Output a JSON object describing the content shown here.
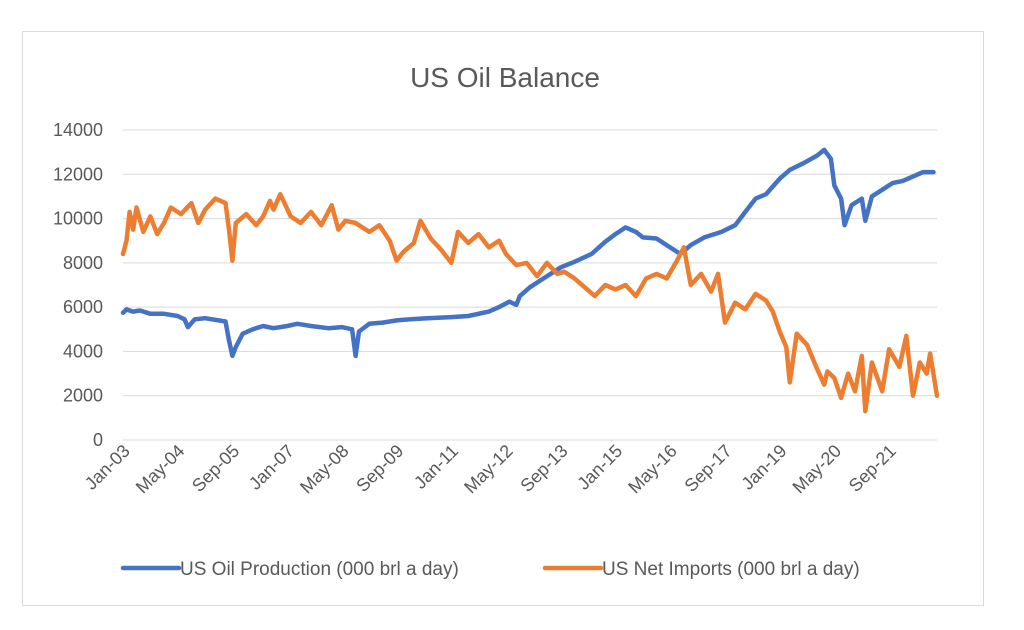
{
  "chart_data": {
    "type": "line",
    "title": "US Oil Balance",
    "xlabel": "",
    "ylabel": "",
    "ylim": [
      0,
      14000
    ],
    "y_ticks": [
      0,
      2000,
      4000,
      6000,
      8000,
      10000,
      12000,
      14000
    ],
    "x_tick_labels": [
      "Jan-03",
      "May-04",
      "Sep-05",
      "Jan-07",
      "May-08",
      "Sep-09",
      "Jan-11",
      "May-12",
      "Sep-13",
      "Jan-15",
      "May-16",
      "Sep-17",
      "Jan-19",
      "May-20",
      "Sep-21"
    ],
    "grid": "horizontal",
    "legend_position": "bottom",
    "series": [
      {
        "name": "US Oil Production (000 brl a day)",
        "color": "#4472C4",
        "points": [
          [
            "2003-01",
            5750
          ],
          [
            "2003-02",
            5900
          ],
          [
            "2003-04",
            5800
          ],
          [
            "2003-06",
            5850
          ],
          [
            "2003-09",
            5700
          ],
          [
            "2004-01",
            5700
          ],
          [
            "2004-05",
            5600
          ],
          [
            "2004-07",
            5450
          ],
          [
            "2004-08",
            5100
          ],
          [
            "2004-10",
            5450
          ],
          [
            "2005-01",
            5500
          ],
          [
            "2005-05",
            5400
          ],
          [
            "2005-07",
            5350
          ],
          [
            "2005-08",
            4500
          ],
          [
            "2005-09",
            3800
          ],
          [
            "2005-10",
            4200
          ],
          [
            "2005-12",
            4800
          ],
          [
            "2006-03",
            5000
          ],
          [
            "2006-06",
            5150
          ],
          [
            "2006-09",
            5050
          ],
          [
            "2007-01",
            5150
          ],
          [
            "2007-04",
            5250
          ],
          [
            "2007-08",
            5150
          ],
          [
            "2008-01",
            5050
          ],
          [
            "2008-05",
            5100
          ],
          [
            "2008-08",
            5000
          ],
          [
            "2008-09",
            3800
          ],
          [
            "2008-10",
            4900
          ],
          [
            "2009-01",
            5250
          ],
          [
            "2009-05",
            5300
          ],
          [
            "2009-09",
            5400
          ],
          [
            "2010-01",
            5450
          ],
          [
            "2010-06",
            5500
          ],
          [
            "2011-01",
            5550
          ],
          [
            "2011-06",
            5600
          ],
          [
            "2011-12",
            5800
          ],
          [
            "2012-03",
            6000
          ],
          [
            "2012-06",
            6250
          ],
          [
            "2012-08",
            6100
          ],
          [
            "2012-09",
            6500
          ],
          [
            "2012-12",
            6900
          ],
          [
            "2013-04",
            7300
          ],
          [
            "2013-09",
            7800
          ],
          [
            "2014-01",
            8050
          ],
          [
            "2014-06",
            8400
          ],
          [
            "2014-10",
            8950
          ],
          [
            "2015-01",
            9300
          ],
          [
            "2015-04",
            9600
          ],
          [
            "2015-07",
            9400
          ],
          [
            "2015-09",
            9150
          ],
          [
            "2016-01",
            9100
          ],
          [
            "2016-05",
            8700
          ],
          [
            "2016-08",
            8400
          ],
          [
            "2016-11",
            8800
          ],
          [
            "2017-03",
            9150
          ],
          [
            "2017-08",
            9400
          ],
          [
            "2017-12",
            9700
          ],
          [
            "2018-03",
            10300
          ],
          [
            "2018-06",
            10900
          ],
          [
            "2018-09",
            11100
          ],
          [
            "2019-01",
            11800
          ],
          [
            "2019-04",
            12200
          ],
          [
            "2019-08",
            12500
          ],
          [
            "2019-12",
            12850
          ],
          [
            "2020-02",
            13100
          ],
          [
            "2020-04",
            12700
          ],
          [
            "2020-05",
            11500
          ],
          [
            "2020-07",
            10900
          ],
          [
            "2020-08",
            9700
          ],
          [
            "2020-10",
            10600
          ],
          [
            "2021-01",
            10900
          ],
          [
            "2021-02",
            9900
          ],
          [
            "2021-04",
            11000
          ],
          [
            "2021-07",
            11300
          ],
          [
            "2021-10",
            11600
          ],
          [
            "2022-01",
            11700
          ],
          [
            "2022-04",
            11900
          ],
          [
            "2022-07",
            12100
          ],
          [
            "2022-10",
            12100
          ]
        ]
      },
      {
        "name": "US Net Imports (000 brl a day)",
        "color": "#ED7D31",
        "points": [
          [
            "2003-01",
            8400
          ],
          [
            "2003-02",
            9000
          ],
          [
            "2003-03",
            10300
          ],
          [
            "2003-04",
            9500
          ],
          [
            "2003-05",
            10500
          ],
          [
            "2003-07",
            9400
          ],
          [
            "2003-09",
            10100
          ],
          [
            "2003-11",
            9300
          ],
          [
            "2004-01",
            9800
          ],
          [
            "2004-03",
            10500
          ],
          [
            "2004-06",
            10200
          ],
          [
            "2004-09",
            10700
          ],
          [
            "2004-11",
            9800
          ],
          [
            "2005-01",
            10400
          ],
          [
            "2005-04",
            10900
          ],
          [
            "2005-07",
            10700
          ],
          [
            "2005-08",
            9500
          ],
          [
            "2005-09",
            8100
          ],
          [
            "2005-10",
            9800
          ],
          [
            "2006-01",
            10200
          ],
          [
            "2006-04",
            9700
          ],
          [
            "2006-06",
            10100
          ],
          [
            "2006-08",
            10800
          ],
          [
            "2006-09",
            10400
          ],
          [
            "2006-11",
            11100
          ],
          [
            "2007-02",
            10100
          ],
          [
            "2007-05",
            9800
          ],
          [
            "2007-08",
            10300
          ],
          [
            "2007-11",
            9700
          ],
          [
            "2008-02",
            10600
          ],
          [
            "2008-04",
            9500
          ],
          [
            "2008-06",
            9900
          ],
          [
            "2008-09",
            9800
          ],
          [
            "2009-01",
            9400
          ],
          [
            "2009-04",
            9700
          ],
          [
            "2009-07",
            9000
          ],
          [
            "2009-09",
            8100
          ],
          [
            "2009-11",
            8500
          ],
          [
            "2010-02",
            8900
          ],
          [
            "2010-04",
            9900
          ],
          [
            "2010-07",
            9100
          ],
          [
            "2010-10",
            8600
          ],
          [
            "2011-01",
            8000
          ],
          [
            "2011-03",
            9400
          ],
          [
            "2011-06",
            8900
          ],
          [
            "2011-09",
            9300
          ],
          [
            "2011-12",
            8700
          ],
          [
            "2012-03",
            9000
          ],
          [
            "2012-05",
            8400
          ],
          [
            "2012-08",
            7900
          ],
          [
            "2012-11",
            8000
          ],
          [
            "2013-02",
            7400
          ],
          [
            "2013-05",
            8000
          ],
          [
            "2013-08",
            7500
          ],
          [
            "2013-10",
            7600
          ],
          [
            "2014-01",
            7300
          ],
          [
            "2014-04",
            6900
          ],
          [
            "2014-07",
            6500
          ],
          [
            "2014-10",
            7000
          ],
          [
            "2015-01",
            6800
          ],
          [
            "2015-04",
            7000
          ],
          [
            "2015-07",
            6500
          ],
          [
            "2015-10",
            7300
          ],
          [
            "2016-01",
            7500
          ],
          [
            "2016-04",
            7300
          ],
          [
            "2016-07",
            8100
          ],
          [
            "2016-09",
            8700
          ],
          [
            "2016-11",
            7000
          ],
          [
            "2017-02",
            7500
          ],
          [
            "2017-05",
            6700
          ],
          [
            "2017-07",
            7500
          ],
          [
            "2017-09",
            5300
          ],
          [
            "2017-12",
            6200
          ],
          [
            "2018-03",
            5900
          ],
          [
            "2018-06",
            6600
          ],
          [
            "2018-09",
            6300
          ],
          [
            "2018-11",
            5800
          ],
          [
            "2019-01",
            4900
          ],
          [
            "2019-03",
            4200
          ],
          [
            "2019-04",
            2600
          ],
          [
            "2019-06",
            4800
          ],
          [
            "2019-09",
            4300
          ],
          [
            "2019-12",
            3200
          ],
          [
            "2020-02",
            2500
          ],
          [
            "2020-03",
            3100
          ],
          [
            "2020-05",
            2800
          ],
          [
            "2020-07",
            1900
          ],
          [
            "2020-09",
            3000
          ],
          [
            "2020-11",
            2200
          ],
          [
            "2021-01",
            3800
          ],
          [
            "2021-02",
            1300
          ],
          [
            "2021-04",
            3500
          ],
          [
            "2021-07",
            2200
          ],
          [
            "2021-09",
            4100
          ],
          [
            "2021-12",
            3300
          ],
          [
            "2022-02",
            4700
          ],
          [
            "2022-04",
            2000
          ],
          [
            "2022-06",
            3500
          ],
          [
            "2022-08",
            3000
          ],
          [
            "2022-09",
            3900
          ],
          [
            "2022-11",
            2000
          ]
        ]
      }
    ]
  }
}
